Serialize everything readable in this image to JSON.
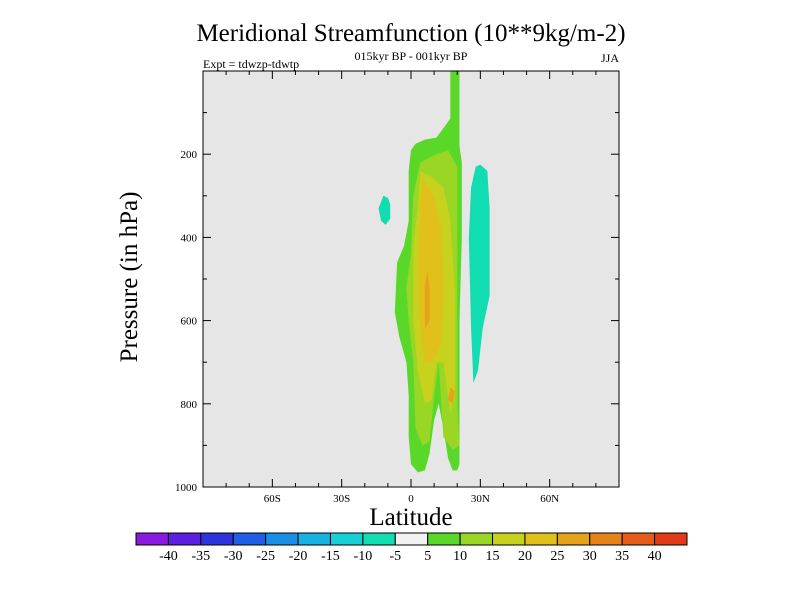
{
  "chart_data": {
    "type": "contour",
    "title": "Meridional Streamfunction (10**9kg/m-2)",
    "subtitle": "015kyr BP - 001kyr BP",
    "left_label": "Expt = tdwzp-tdwtp",
    "right_label": "JJA",
    "xlabel": "Latitude",
    "ylabel": "Pressure (in hPa)",
    "x_range": [
      -90,
      90
    ],
    "y_range": [
      0,
      1000
    ],
    "x_ticks": [
      -60,
      -30,
      0,
      30,
      60
    ],
    "x_tick_labels": [
      "60S",
      "30S",
      "0",
      "30N",
      "60N"
    ],
    "y_ticks": [
      200,
      400,
      600,
      800,
      1000
    ],
    "y_tick_labels": [
      "200",
      "400",
      "600",
      "800",
      "1000"
    ],
    "background_color": "#e6e6e6",
    "contour_regions": [
      {
        "name": "main-plume-5-10",
        "level": "5 to 10",
        "points": [
          [
            17,
            0
          ],
          [
            21,
            0
          ],
          [
            21,
            180
          ],
          [
            22,
            220
          ],
          [
            22,
            400
          ],
          [
            21,
            600
          ],
          [
            21,
            900
          ],
          [
            21,
            945
          ],
          [
            20,
            960
          ],
          [
            18,
            960
          ],
          [
            16,
            930
          ],
          [
            14,
            860
          ],
          [
            12,
            800
          ],
          [
            10,
            840
          ],
          [
            8,
            920
          ],
          [
            6,
            960
          ],
          [
            3,
            965
          ],
          [
            0,
            945
          ],
          [
            -1,
            880
          ],
          [
            -1,
            780
          ],
          [
            -2,
            700
          ],
          [
            -5,
            640
          ],
          [
            -7,
            580
          ],
          [
            -6,
            460
          ],
          [
            -3,
            420
          ],
          [
            -1,
            360
          ],
          [
            -1,
            240
          ],
          [
            0,
            190
          ],
          [
            2,
            175
          ],
          [
            6,
            165
          ],
          [
            11,
            160
          ],
          [
            17,
            115
          ]
        ]
      },
      {
        "name": "plume-10-15",
        "level": "10 to 15",
        "points": [
          [
            20,
            230
          ],
          [
            20,
            520
          ],
          [
            20,
            800
          ],
          [
            21,
            900
          ],
          [
            18,
            910
          ],
          [
            14,
            880
          ],
          [
            12,
            700
          ],
          [
            10,
            780
          ],
          [
            8,
            890
          ],
          [
            5,
            900
          ],
          [
            2,
            860
          ],
          [
            1,
            700
          ],
          [
            -1,
            600
          ],
          [
            -2,
            520
          ],
          [
            0,
            440
          ],
          [
            1,
            300
          ],
          [
            4,
            220
          ],
          [
            11,
            200
          ],
          [
            16,
            190
          ]
        ]
      },
      {
        "name": "plume-15-20",
        "level": "15 to 20",
        "points": [
          [
            4,
            240
          ],
          [
            9,
            255
          ],
          [
            14,
            280
          ],
          [
            17,
            360
          ],
          [
            19,
            530
          ],
          [
            19,
            780
          ],
          [
            17,
            820
          ],
          [
            14,
            700
          ],
          [
            11,
            700
          ],
          [
            9,
            790
          ],
          [
            6,
            800
          ],
          [
            3,
            720
          ],
          [
            1,
            600
          ],
          [
            1,
            420
          ],
          [
            3,
            330
          ]
        ]
      },
      {
        "name": "plume-20-25",
        "level": "20 to 25",
        "points": [
          [
            5,
            260
          ],
          [
            10,
            300
          ],
          [
            13,
            380
          ],
          [
            14,
            520
          ],
          [
            13,
            660
          ],
          [
            9,
            700
          ],
          [
            6,
            700
          ],
          [
            4,
            620
          ],
          [
            3,
            480
          ],
          [
            4,
            340
          ]
        ]
      },
      {
        "name": "plume-25-30",
        "level": "25 to 30",
        "points": [
          [
            7,
            480
          ],
          [
            8,
            520
          ],
          [
            8,
            600
          ],
          [
            6,
            620
          ],
          [
            6,
            520
          ]
        ]
      },
      {
        "name": "plume-25-30-low",
        "level": "25 to 30",
        "points": [
          [
            17,
            760
          ],
          [
            19,
            770
          ],
          [
            18,
            800
          ],
          [
            16,
            790
          ]
        ]
      },
      {
        "name": "cell-neg-west",
        "level": "-10 to -5",
        "points": [
          [
            -12,
            300
          ],
          [
            -10,
            305
          ],
          [
            -9,
            320
          ],
          [
            -9,
            355
          ],
          [
            -11,
            370
          ],
          [
            -13,
            360
          ],
          [
            -14,
            330
          ]
        ]
      },
      {
        "name": "cell-neg-east",
        "level": "-10 to -5",
        "points": [
          [
            30,
            225
          ],
          [
            33,
            240
          ],
          [
            34,
            330
          ],
          [
            34,
            540
          ],
          [
            31,
            620
          ],
          [
            29,
            720
          ],
          [
            27,
            750
          ],
          [
            26,
            620
          ],
          [
            25,
            400
          ],
          [
            26,
            280
          ],
          [
            28,
            230
          ]
        ]
      }
    ],
    "colorbar": {
      "tick_labels": [
        "-40",
        "-35",
        "-30",
        "-25",
        "-20",
        "-15",
        "-10",
        "-5",
        "5",
        "10",
        "15",
        "20",
        "25",
        "30",
        "35",
        "40"
      ],
      "colors": [
        "#8a1adf",
        "#5a1fe0",
        "#2e33e0",
        "#1f5ee6",
        "#1a8fe8",
        "#16b2e2",
        "#16d0d8",
        "#12dcb2",
        "#f2f2f2",
        "#5ad82a",
        "#9ad624",
        "#c8d21e",
        "#e1c01c",
        "#e5a21b",
        "#e6821a",
        "#e45c18",
        "#e23a16"
      ]
    }
  }
}
